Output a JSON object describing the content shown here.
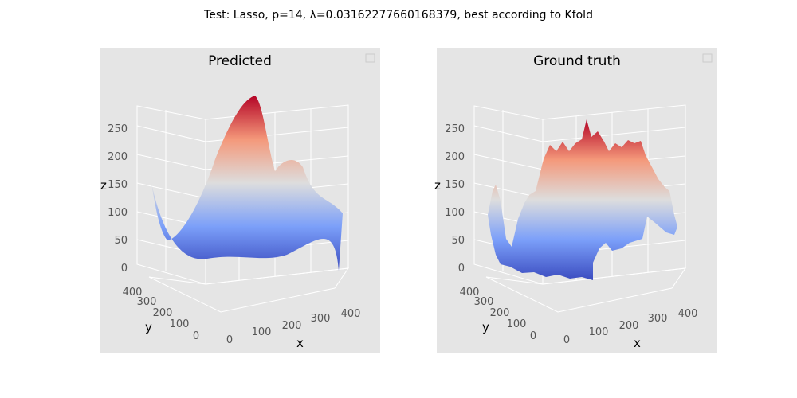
{
  "suptitle": "Test: Lasso, p=14, λ=0.03162277660168379, best according to Kfold",
  "colors": {
    "panel_background": "#e5e5e5",
    "grid": "#ffffff",
    "tick_text": "#555555",
    "colormap": "coolwarm"
  },
  "chart_data": [
    {
      "type": "surface3d",
      "title": "Predicted",
      "xlabel": "x",
      "ylabel": "y",
      "zlabel": "z",
      "xticks": [
        "0",
        "100",
        "200",
        "300",
        "400"
      ],
      "yticks": [
        "0",
        "100",
        "200",
        "300",
        "400"
      ],
      "zticks": [
        "0",
        "50",
        "100",
        "150",
        "200",
        "250"
      ],
      "xlim": [
        0,
        450
      ],
      "ylim": [
        0,
        450
      ],
      "zlim": [
        0,
        290
      ],
      "grid": true,
      "legend": "top-right (empty)",
      "surface_profile": {
        "x": [
          0,
          25,
          50,
          75,
          100,
          125,
          150,
          175,
          200,
          225,
          250,
          275,
          300,
          325,
          350,
          375,
          400,
          425,
          450
        ],
        "z_min": [
          -5,
          -8,
          -5,
          0,
          3,
          5,
          6,
          6,
          5,
          3,
          2,
          5,
          12,
          25,
          40,
          55,
          70,
          40,
          5
        ],
        "z_max": [
          140,
          85,
          40,
          25,
          35,
          60,
          95,
          140,
          180,
          210,
          230,
          250,
          270,
          285,
          260,
          185,
          190,
          210,
          100
        ]
      }
    },
    {
      "type": "surface3d",
      "title": "Ground truth",
      "xlabel": "x",
      "ylabel": "y",
      "zlabel": "z",
      "xticks": [
        "0",
        "100",
        "200",
        "300",
        "400"
      ],
      "yticks": [
        "0",
        "100",
        "200",
        "300",
        "400"
      ],
      "zticks": [
        "0",
        "50",
        "100",
        "150",
        "200",
        "250"
      ],
      "xlim": [
        0,
        450
      ],
      "ylim": [
        0,
        450
      ],
      "zlim": [
        0,
        290
      ],
      "grid": true,
      "legend": "top-right (empty)",
      "surface_profile": {
        "x": [
          0,
          25,
          50,
          75,
          100,
          125,
          150,
          175,
          200,
          225,
          250,
          275,
          300,
          325,
          350,
          375,
          400,
          425,
          450
        ],
        "z_min": [
          5,
          0,
          -5,
          -5,
          0,
          0,
          5,
          0,
          5,
          10,
          20,
          40,
          50,
          60,
          70,
          80,
          90,
          95,
          100
        ],
        "z_max": [
          110,
          140,
          95,
          125,
          160,
          200,
          225,
          250,
          265,
          245,
          260,
          270,
          255,
          240,
          210,
          175,
          150,
          130,
          110
        ]
      }
    }
  ]
}
